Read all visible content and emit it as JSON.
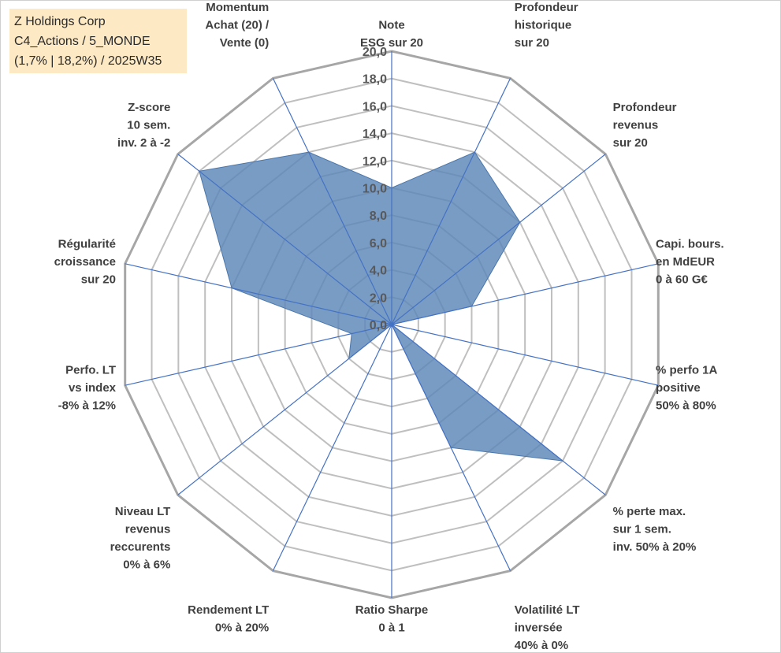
{
  "info": {
    "line1": "Z Holdings Corp",
    "line2": "C4_Actions / 5_MONDE",
    "line3": "(1,7% | 18,2%) / 2025W35"
  },
  "chart_data": {
    "type": "radar",
    "title": "",
    "rlim": [
      0,
      20
    ],
    "ticks": [
      "0,0",
      "2,0",
      "4,0",
      "6,0",
      "8,0",
      "10,0",
      "12,0",
      "14,0",
      "16,0",
      "18,0",
      "20,0"
    ],
    "grid": true,
    "colors": {
      "fill": "#5b86b8",
      "axis": "#4472c4",
      "grid": "#bfbfbf",
      "grid_outer": "#a6a6a6"
    },
    "axes": [
      [
        "Note",
        "ESG sur 20"
      ],
      [
        "Profondeur",
        "historique",
        "sur 20"
      ],
      [
        "Profondeur",
        "revenus",
        "sur 20"
      ],
      [
        "Capi. bours.",
        "en MdEUR",
        "0 à 60 G€"
      ],
      [
        "% perfo 1A",
        "positive",
        "50% à 80%"
      ],
      [
        "% perte max.",
        "sur 1 sem.",
        "inv. 50% à 20%"
      ],
      [
        "Volatilité LT",
        "inversée",
        "40% à 0%"
      ],
      [
        "Ratio Sharpe",
        "0 à 1"
      ],
      [
        "Rendement LT",
        "0% à 20%"
      ],
      [
        "Niveau LT",
        "revenus",
        "reccurents",
        "0% à 6%"
      ],
      [
        "Perfo. LT",
        "vs index",
        "-8% à 12%"
      ],
      [
        "Régularité",
        "croissance",
        "sur 20"
      ],
      [
        "Z-score",
        "10 sem.",
        "inv. 2 à -2"
      ],
      [
        "Momentum",
        "Achat (20) /",
        "Vente (0)"
      ]
    ],
    "series": [
      {
        "values": [
          10,
          14,
          12,
          6,
          0,
          16,
          10,
          0,
          0,
          4,
          3,
          12,
          18,
          14
        ]
      }
    ]
  }
}
